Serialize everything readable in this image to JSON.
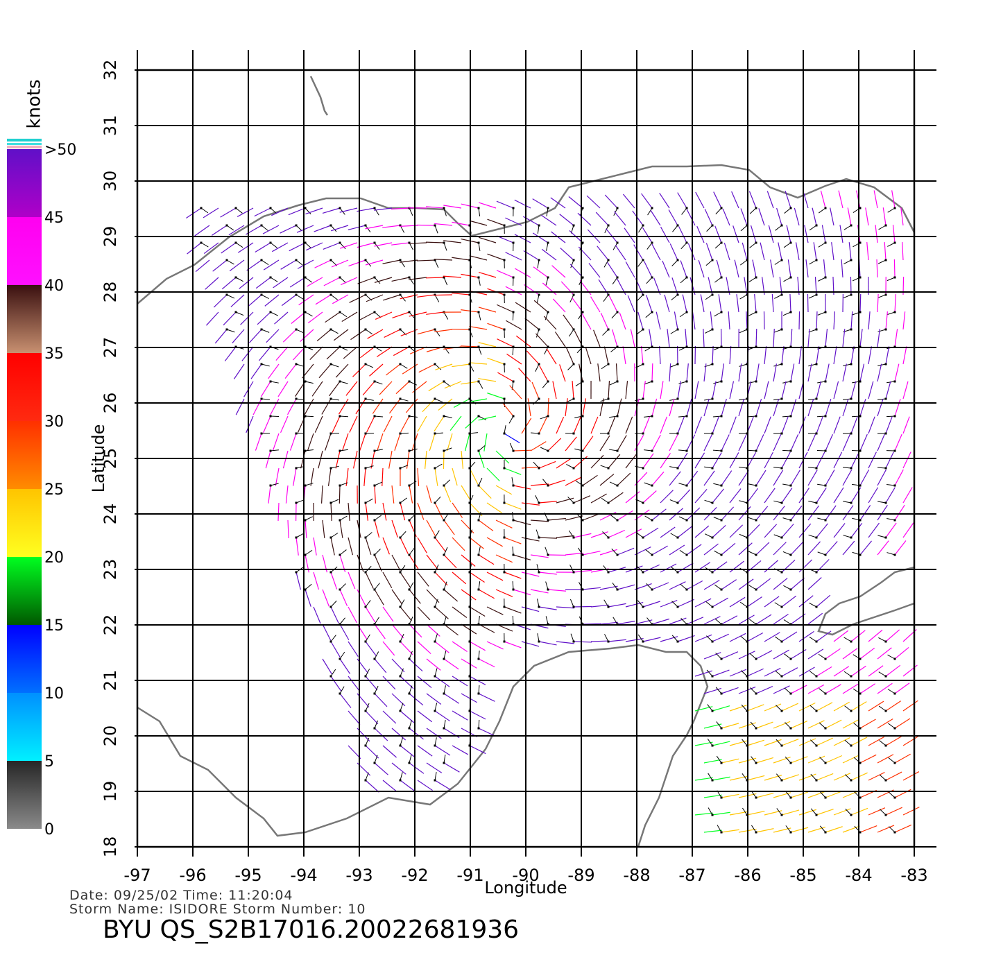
{
  "chart_data": {
    "type": "vector",
    "xlabel": "Longitude",
    "ylabel": "Latitude",
    "xlim": [
      -97,
      -83
    ],
    "ylim": [
      18,
      32
    ],
    "xticks": [
      -97,
      -96,
      -95,
      -94,
      -93,
      -92,
      -91,
      -90,
      -89,
      -88,
      -87,
      -86,
      -85,
      -84,
      -83
    ],
    "yticks": [
      18,
      19,
      20,
      21,
      22,
      23,
      24,
      25,
      26,
      27,
      28,
      29,
      30,
      31,
      32
    ],
    "grid": true,
    "colorbar": {
      "label": "knots",
      "lim": [
        0,
        50
      ],
      "ticks": [
        0,
        5,
        10,
        15,
        20,
        25,
        30,
        35,
        40,
        45,
        {
          "value": 50,
          "label": ">50"
        }
      ],
      "colors": [
        [
          "#8a8a8a",
          "#262626"
        ],
        [
          "#00f0ff",
          "#0090ff"
        ],
        [
          "#0070ff",
          "#0000ff"
        ],
        [
          "#005800",
          "#00ff20"
        ],
        [
          "#ffff20",
          "#ffc400"
        ],
        [
          "#ff8c00",
          "#ff3000"
        ],
        [
          "#ff2a10",
          "#ff0000"
        ],
        [
          "#c89070",
          "#3a1010"
        ],
        [
          "#ff10ff",
          "#ff00f0"
        ],
        [
          "#b000c8",
          "#6010c8"
        ]
      ]
    },
    "info": {
      "line1": "Date:  09/25/02   Time:  11:20:04",
      "line2": "Storm  Name:  ISIDORE    Storm  Number:  10"
    },
    "title": "BYU  QS_S2B17016.20022681936"
  }
}
